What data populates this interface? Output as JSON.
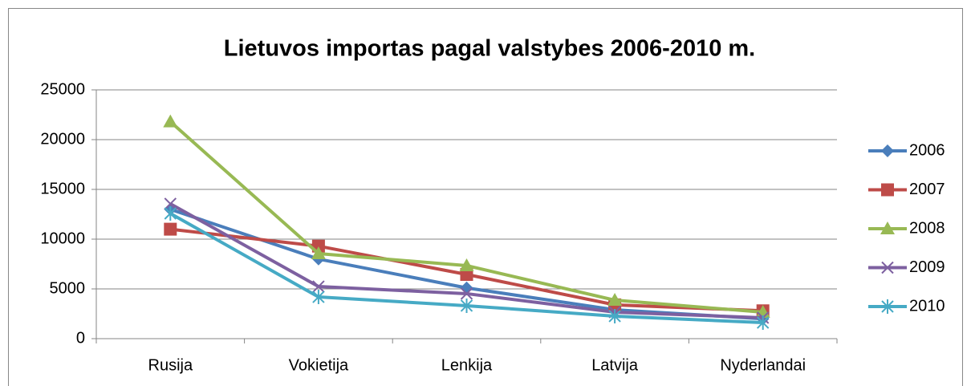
{
  "chart_data": {
    "type": "line",
    "title": "Lietuvos importas pagal valstybes 2006-2010 m.",
    "categories": [
      "Rusija",
      "Vokietija",
      "Lenkija",
      "Latvija",
      "Nyderlandai"
    ],
    "series": [
      {
        "name": "2006",
        "color": "#4a7ebb",
        "marker": "diamond",
        "values": [
          13000,
          8000,
          5100,
          2900,
          2000
        ]
      },
      {
        "name": "2007",
        "color": "#be4b48",
        "marker": "square",
        "values": [
          11000,
          9300,
          6450,
          3400,
          2800
        ]
      },
      {
        "name": "2008",
        "color": "#98b954",
        "marker": "triangle",
        "values": [
          21800,
          8550,
          7340,
          3870,
          2660
        ]
      },
      {
        "name": "2009",
        "color": "#7d60a0",
        "marker": "x",
        "values": [
          13550,
          5240,
          4520,
          2660,
          2100
        ]
      },
      {
        "name": "2010",
        "color": "#46aac5",
        "marker": "star",
        "values": [
          12580,
          4190,
          3310,
          2260,
          1610
        ]
      }
    ],
    "ylim": [
      0,
      25000
    ],
    "yticks": [
      0,
      5000,
      10000,
      15000,
      20000,
      25000
    ],
    "grid": true,
    "legend": "right"
  }
}
